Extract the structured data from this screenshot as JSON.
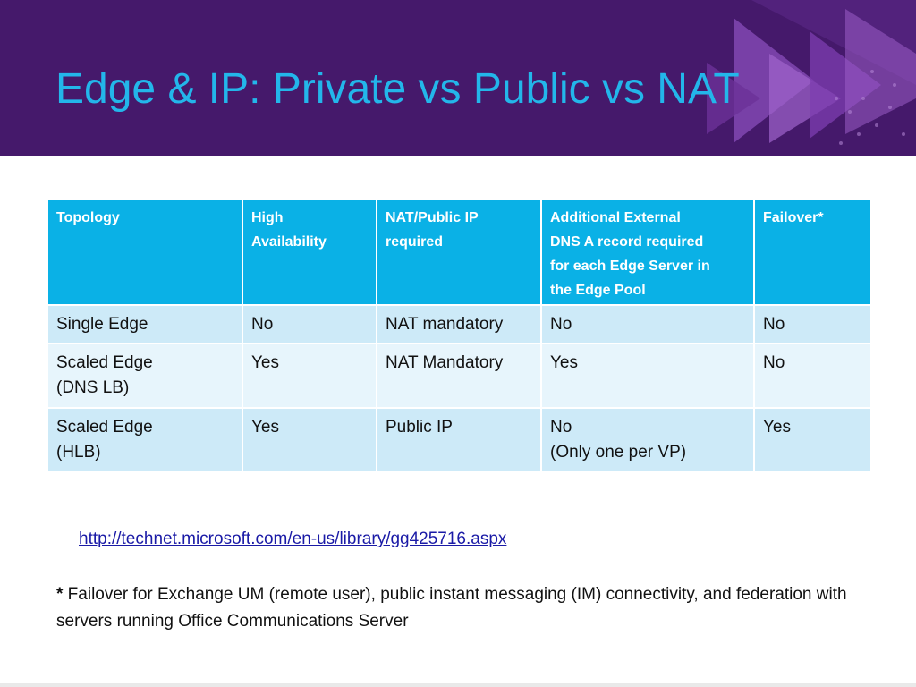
{
  "slide": {
    "title": "Edge & IP: Private vs Public vs NAT"
  },
  "table": {
    "headers": [
      "Topology",
      "High\nAvailability",
      "NAT/Public IP\nrequired",
      "Additional External\nDNS A record required\nfor each Edge Server in\nthe Edge Pool",
      "Failover*"
    ],
    "rows": [
      [
        "Single Edge",
        "No",
        "NAT mandatory",
        "No",
        "No"
      ],
      [
        "Scaled Edge\n(DNS LB)",
        "Yes",
        "NAT Mandatory",
        "Yes",
        "No"
      ],
      [
        "Scaled Edge\n(HLB)",
        "Yes",
        "Public IP",
        "No\n(Only one per VP)",
        "Yes"
      ]
    ]
  },
  "reference_link": "http://technet.microsoft.com/en-us/library/gg425716.aspx",
  "footnote": {
    "marker": "*",
    "text": " Failover for Exchange UM (remote user), public instant messaging (IM) connectivity, and federation with servers running Office Communications Server"
  },
  "colors": {
    "header_background": "#45196b",
    "title_text": "#23b6ea",
    "table_header": "#0ab1e6",
    "row_dark": "#cdeaf8",
    "row_light": "#e7f5fc",
    "link": "#1a1aa6"
  },
  "icons": [
    "triangle-play-decoration"
  ]
}
